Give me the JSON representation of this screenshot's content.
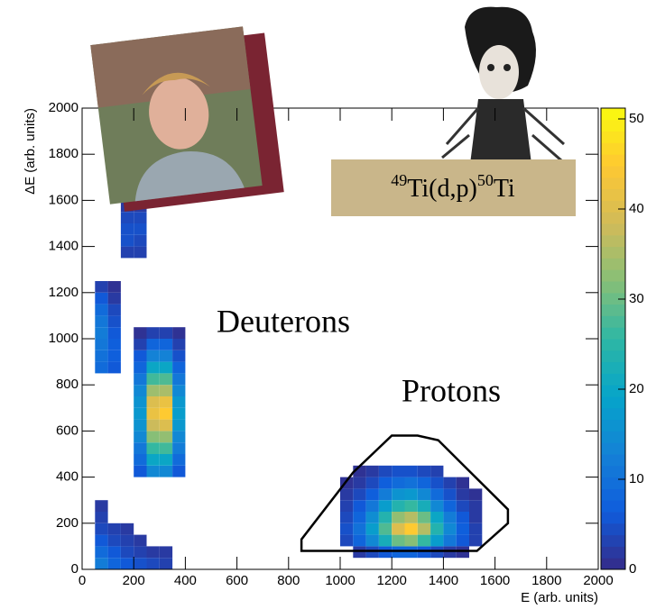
{
  "chart_data": {
    "type": "heatmap",
    "xlabel": "E (arb. units)",
    "ylabel": "ΔE (arb. units)",
    "xlim": [
      0,
      2000
    ],
    "ylim": [
      0,
      2000
    ],
    "zlim": [
      0,
      51.2
    ],
    "xticks": [
      0,
      200,
      400,
      600,
      800,
      1000,
      1200,
      1400,
      1600,
      1800,
      2000
    ],
    "yticks": [
      0,
      200,
      400,
      600,
      800,
      1000,
      1200,
      1400,
      1600,
      1800,
      2000
    ],
    "zticks": [
      0,
      10,
      20,
      30,
      40,
      50
    ],
    "palette": [
      "#352a87",
      "#0f5cdd",
      "#1481d6",
      "#06a4ca",
      "#2eb7a4",
      "#87bf77",
      "#d1bb59",
      "#fec832",
      "#f9fb0e"
    ],
    "annotations": [
      "Deuterons",
      "Protons"
    ],
    "reaction": [
      "49",
      "Ti(d,p)",
      "50",
      "Ti"
    ],
    "gate": {
      "color": "#000000",
      "x": [
        850,
        850,
        1050,
        1200,
        1300,
        1380,
        1650,
        1650,
        1530
      ],
      "y": [
        80,
        130,
        420,
        580,
        580,
        560,
        260,
        200,
        80
      ]
    },
    "rows": [
      {
        "y": 25,
        "x": [
          75,
          125,
          175,
          225,
          275,
          325
        ],
        "values": [
          12,
          8,
          6,
          5,
          4,
          3
        ]
      },
      {
        "y": 75,
        "x": [
          75,
          125,
          175,
          225,
          275,
          325,
          1075,
          1125,
          1175,
          1225,
          1275,
          1325,
          1375,
          1425,
          1475
        ],
        "values": [
          9,
          6,
          4,
          3,
          2,
          2,
          2,
          4,
          6,
          8,
          8,
          6,
          4,
          2,
          1
        ]
      },
      {
        "y": 125,
        "x": [
          75,
          125,
          175,
          225,
          1025,
          1075,
          1125,
          1175,
          1225,
          1275,
          1325,
          1375,
          1425,
          1475,
          1525
        ],
        "values": [
          6,
          4,
          3,
          2,
          4,
          8,
          14,
          22,
          30,
          32,
          26,
          18,
          11,
          6,
          3
        ]
      },
      {
        "y": 175,
        "x": [
          75,
          125,
          175,
          1025,
          1075,
          1125,
          1175,
          1225,
          1275,
          1325,
          1375,
          1425,
          1475,
          1525
        ],
        "values": [
          4,
          3,
          2,
          5,
          10,
          18,
          28,
          40,
          45,
          36,
          24,
          14,
          7,
          3
        ]
      },
      {
        "y": 225,
        "x": [
          75,
          1025,
          1075,
          1125,
          1175,
          1225,
          1275,
          1325,
          1375,
          1425,
          1475,
          1525
        ],
        "values": [
          3,
          4,
          8,
          15,
          24,
          33,
          36,
          30,
          20,
          12,
          6,
          2
        ]
      },
      {
        "y": 275,
        "x": [
          75,
          1025,
          1075,
          1125,
          1175,
          1225,
          1275,
          1325,
          1375,
          1425,
          1475,
          1525
        ],
        "values": [
          2,
          3,
          6,
          11,
          18,
          24,
          26,
          22,
          14,
          8,
          4,
          2
        ]
      },
      {
        "y": 325,
        "x": [
          1025,
          1075,
          1125,
          1175,
          1225,
          1275,
          1325,
          1375,
          1425,
          1475,
          1525
        ],
        "values": [
          2,
          4,
          7,
          12,
          16,
          17,
          14,
          9,
          5,
          2,
          1
        ]
      },
      {
        "y": 375,
        "x": [
          1025,
          1075,
          1125,
          1175,
          1225,
          1275,
          1325,
          1375,
          1425,
          1475
        ],
        "values": [
          1,
          2,
          4,
          7,
          9,
          10,
          8,
          5,
          3,
          1
        ]
      },
      {
        "y": 425,
        "x": [
          225,
          275,
          325,
          375,
          1075,
          1125,
          1175,
          1225,
          1275,
          1325,
          1375
        ],
        "values": [
          6,
          14,
          14,
          6,
          1,
          2,
          4,
          5,
          5,
          4,
          3
        ]
      },
      {
        "y": 475,
        "x": [
          225,
          275,
          325,
          375
        ],
        "values": [
          9,
          20,
          20,
          9
        ]
      },
      {
        "y": 525,
        "x": [
          225,
          275,
          325,
          375
        ],
        "values": [
          11,
          26,
          27,
          12
        ]
      },
      {
        "y": 575,
        "x": [
          225,
          275,
          325,
          375
        ],
        "values": [
          14,
          32,
          33,
          14
        ]
      },
      {
        "y": 625,
        "x": [
          225,
          275,
          325,
          375
        ],
        "values": [
          16,
          38,
          40,
          17
        ]
      },
      {
        "y": 675,
        "x": [
          225,
          275,
          325,
          375
        ],
        "values": [
          17,
          42,
          45,
          18
        ]
      },
      {
        "y": 725,
        "x": [
          225,
          275,
          325,
          375
        ],
        "values": [
          16,
          40,
          42,
          17
        ]
      },
      {
        "y": 775,
        "x": [
          225,
          275,
          325,
          375
        ],
        "values": [
          14,
          34,
          35,
          14
        ]
      },
      {
        "y": 825,
        "x": [
          225,
          275,
          325,
          375
        ],
        "values": [
          11,
          27,
          28,
          11
        ]
      },
      {
        "y": 875,
        "x": [
          75,
          125,
          225,
          275,
          325,
          375
        ],
        "values": [
          9,
          6,
          8,
          20,
          20,
          8
        ]
      },
      {
        "y": 925,
        "x": [
          75,
          125,
          225,
          275,
          325,
          375
        ],
        "values": [
          10,
          7,
          6,
          13,
          13,
          5
        ]
      },
      {
        "y": 975,
        "x": [
          75,
          125,
          225,
          275,
          325,
          375
        ],
        "values": [
          11,
          7,
          3,
          8,
          8,
          3
        ]
      },
      {
        "y": 1025,
        "x": [
          75,
          125,
          225,
          275,
          325,
          375
        ],
        "values": [
          12,
          6,
          1,
          3,
          3,
          1
        ]
      },
      {
        "y": 1075,
        "x": [
          75,
          125
        ],
        "values": [
          11,
          5
        ]
      },
      {
        "y": 1125,
        "x": [
          75,
          125
        ],
        "values": [
          9,
          4
        ]
      },
      {
        "y": 1175,
        "x": [
          75,
          125
        ],
        "values": [
          6,
          2
        ]
      },
      {
        "y": 1225,
        "x": [
          75,
          125
        ],
        "values": [
          3,
          1
        ]
      },
      {
        "y": 1375,
        "x": [
          175,
          225
        ],
        "values": [
          3,
          3
        ]
      },
      {
        "y": 1425,
        "x": [
          175,
          225
        ],
        "values": [
          5,
          4
        ]
      },
      {
        "y": 1475,
        "x": [
          175,
          225
        ],
        "values": [
          5,
          5
        ]
      },
      {
        "y": 1525,
        "x": [
          175,
          225
        ],
        "values": [
          4,
          4
        ]
      },
      {
        "y": 1575,
        "x": [
          175,
          225
        ],
        "values": [
          2,
          2
        ]
      }
    ]
  }
}
